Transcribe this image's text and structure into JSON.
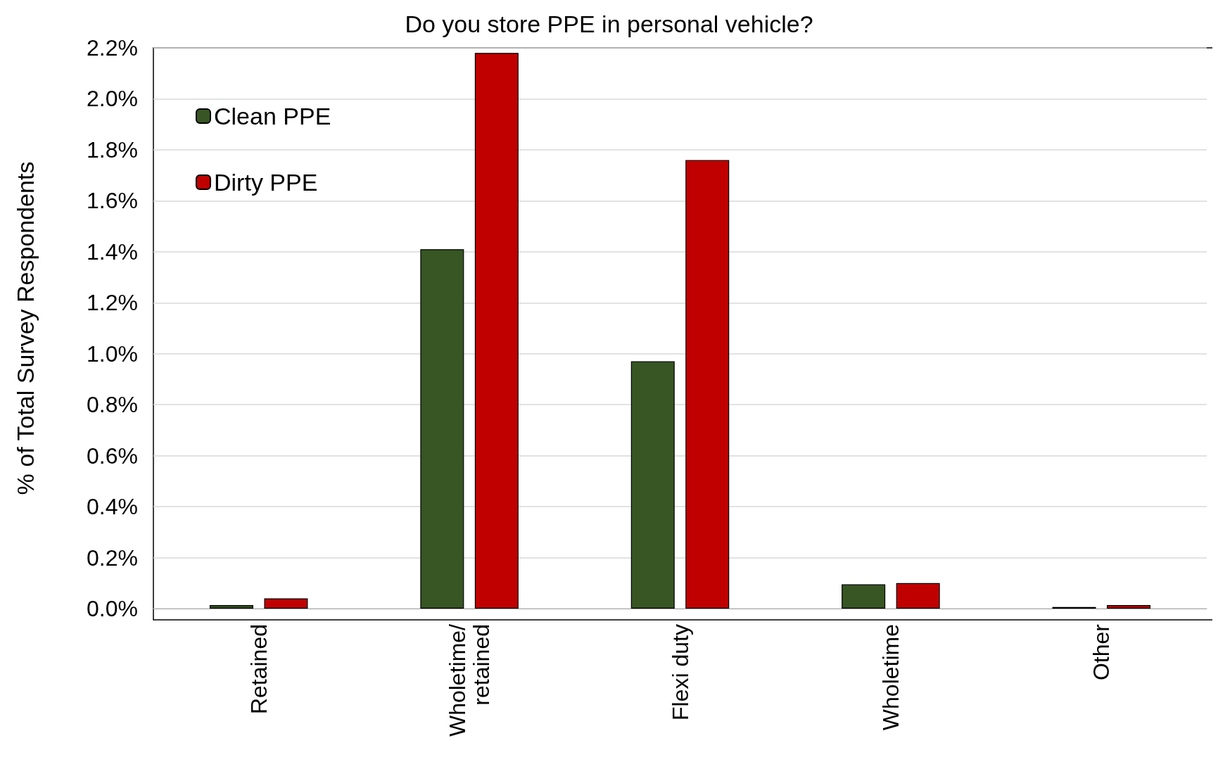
{
  "chart_data": {
    "type": "bar",
    "title": "Do you store PPE in personal vehicle?",
    "ylabel": "% of Total Survey Respondents",
    "categories": [
      "Retained",
      "Wholetime/\nretained",
      "Flexi duty",
      "Wholetime",
      "Other"
    ],
    "series": [
      {
        "name": "Clean PPE",
        "color": "#375623",
        "values": [
          0.014,
          1.41,
          0.97,
          0.095,
          0.006
        ]
      },
      {
        "name": "Dirty PPE",
        "color": "#c00000",
        "values": [
          0.04,
          2.18,
          1.76,
          0.1,
          0.014
        ]
      }
    ],
    "ylim": [
      0,
      2.2
    ],
    "yticks": [
      {
        "value": 0,
        "label": "0.0%"
      },
      {
        "value": 0.2,
        "label": "0.2%"
      },
      {
        "value": 0.4,
        "label": "0.4%"
      },
      {
        "value": 0.6,
        "label": "0.6%"
      },
      {
        "value": 0.8,
        "label": "0.8%"
      },
      {
        "value": 1.0,
        "label": "1.0%"
      },
      {
        "value": 1.2,
        "label": "1.2%"
      },
      {
        "value": 1.4,
        "label": "1.4%"
      },
      {
        "value": 1.6,
        "label": "1.6%"
      },
      {
        "value": 1.8,
        "label": "1.8%"
      },
      {
        "value": 2.0,
        "label": "2.0%"
      },
      {
        "value": 2.2,
        "label": "2.2%"
      }
    ],
    "grid": "y",
    "legend": "top left"
  }
}
